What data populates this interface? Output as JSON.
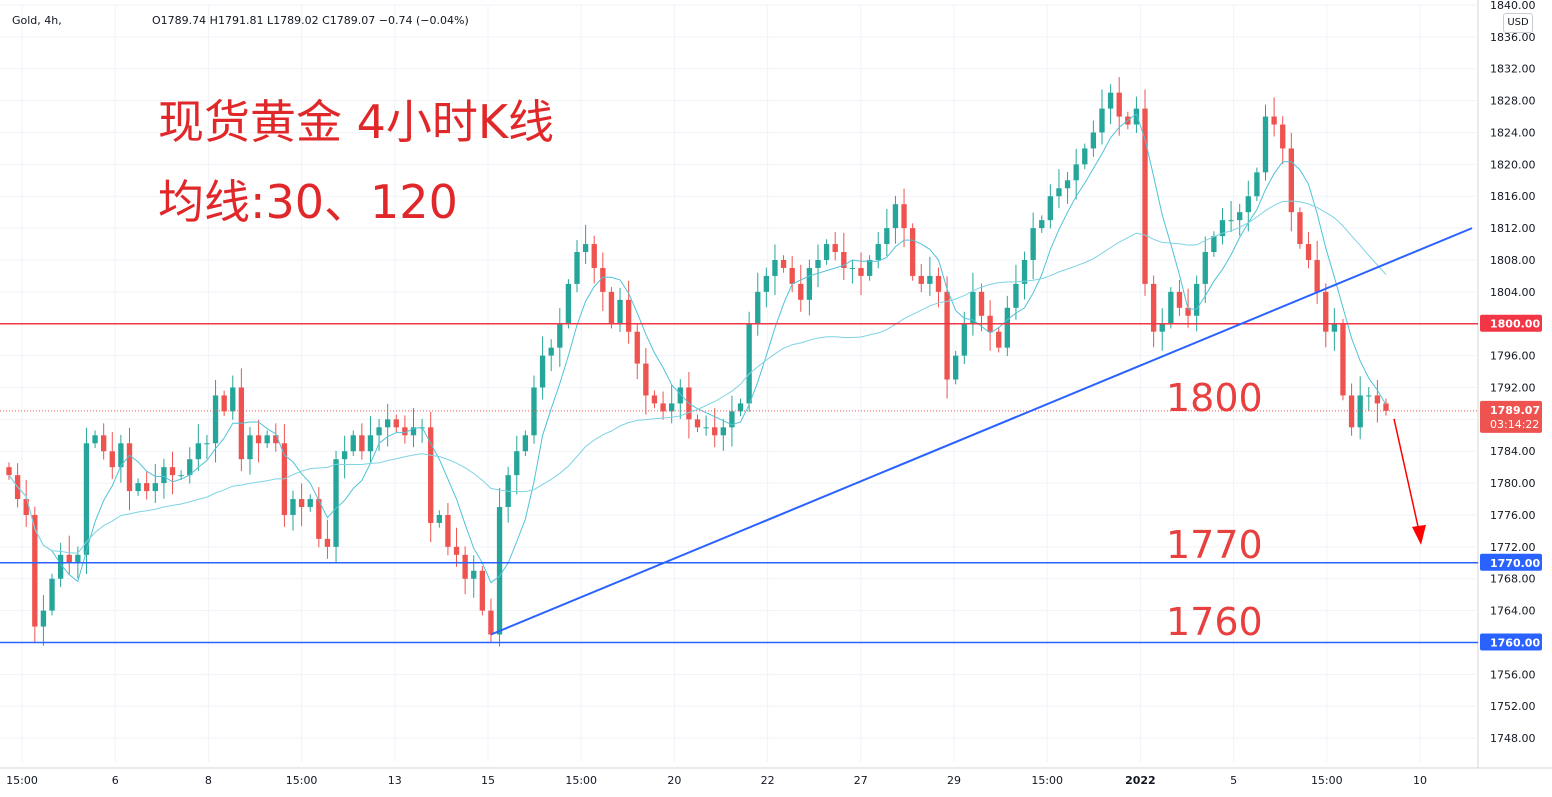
{
  "header": {
    "symbol": "Gold, 4h,",
    "ohlc": {
      "o_key": "O",
      "o": "1789.74",
      "h_key": "H",
      "h": "1791.81",
      "l_key": "L",
      "l": "1789.02",
      "c_key": "C",
      "c": "1789.07",
      "change": "−0.74 (−0.04%)"
    }
  },
  "currency_button": "USD",
  "annotations": {
    "title": "现货黄金 4小时K线",
    "subtitle": "均线:30、120",
    "level_1800": "1800",
    "level_1770": "1770",
    "level_1760": "1760"
  },
  "price_tags": {
    "level_1800": "1800.00",
    "level_1770": "1770.00",
    "level_1760": "1760.00",
    "last_price": "1789.07",
    "countdown": "03:14:22"
  },
  "colors": {
    "up": "#26a69a",
    "down": "#ef5350",
    "ma_line": "#4fc3d7",
    "resistance": "#f23645",
    "support": "#2962ff",
    "trendline": "#2962ff",
    "arrow": "#ff0000"
  },
  "chart_data": {
    "type": "candlestick",
    "timeframe": "4h",
    "ylim": [
      1745,
      1840
    ],
    "y_ticks": [
      "1840.00",
      "1836.00",
      "1832.00",
      "1828.00",
      "1824.00",
      "1820.00",
      "1816.00",
      "1812.00",
      "1808.00",
      "1804.00",
      "1800.00",
      "1796.00",
      "1792.00",
      "1788.00",
      "1784.00",
      "1780.00",
      "1776.00",
      "1772.00",
      "1768.00",
      "1764.00",
      "1760.00",
      "1756.00",
      "1752.00",
      "1748.00"
    ],
    "x_tick_labels": [
      "15:00",
      "6",
      "8",
      "15:00",
      "13",
      "15",
      "15:00",
      "20",
      "22",
      "27",
      "29",
      "15:00",
      "2022",
      "5",
      "15:00",
      "10"
    ],
    "moving_averages": [
      "MA30",
      "MA120"
    ],
    "horizontal_levels": [
      1800,
      1770,
      1760
    ],
    "last_price": 1789.07,
    "trendline": {
      "from": 1761,
      "to": 1812
    },
    "closes": [
      1781,
      1778,
      1776,
      1762,
      1764,
      1768,
      1771,
      1770,
      1771,
      1785,
      1786,
      1784,
      1782,
      1785,
      1779,
      1780,
      1779,
      1780,
      1782,
      1781,
      1781,
      1783,
      1785,
      1785,
      1791,
      1789,
      1792,
      1783,
      1786,
      1785,
      1786,
      1785,
      1776,
      1778,
      1777,
      1778,
      1773,
      1772,
      1783,
      1784,
      1786,
      1784,
      1786,
      1787,
      1788,
      1787,
      1786,
      1787,
      1787,
      1775,
      1776,
      1772,
      1771,
      1768,
      1769,
      1764,
      1761,
      1777,
      1781,
      1784,
      1786,
      1792,
      1796,
      1797,
      1800,
      1805,
      1809,
      1810,
      1807,
      1804,
      1800,
      1803,
      1799,
      1795,
      1791,
      1790,
      1789,
      1790,
      1792,
      1788,
      1787,
      1787,
      1786,
      1787,
      1789,
      1790,
      1800,
      1804,
      1806,
      1808,
      1807,
      1805,
      1803,
      1807,
      1808,
      1810,
      1809,
      1807,
      1807,
      1806,
      1808,
      1810,
      1812,
      1815,
      1812,
      1806,
      1805,
      1806,
      1804,
      1793,
      1796,
      1800,
      1804,
      1801,
      1799,
      1797,
      1802,
      1805,
      1808,
      1812,
      1813,
      1816,
      1817,
      1818,
      1820,
      1822,
      1824,
      1827,
      1829,
      1826,
      1825,
      1827,
      1805,
      1799,
      1800,
      1804,
      1802,
      1801,
      1805,
      1809,
      1811,
      1813,
      1813,
      1814,
      1816,
      1819,
      1826,
      1825,
      1822,
      1814,
      1810,
      1808,
      1804,
      1799,
      1800,
      1791,
      1787,
      1791,
      1791,
      1790,
      1789.07
    ]
  }
}
